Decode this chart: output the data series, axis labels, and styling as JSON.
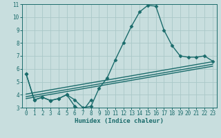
{
  "title": "",
  "xlabel": "Humidex (Indice chaleur)",
  "bg_color": "#c8dede",
  "line_color": "#1a6b6b",
  "grid_color": "#aac8c8",
  "xlim": [
    -0.5,
    23.5
  ],
  "ylim": [
    3,
    11
  ],
  "xticks": [
    0,
    1,
    2,
    3,
    4,
    5,
    6,
    7,
    8,
    9,
    10,
    11,
    12,
    13,
    14,
    15,
    16,
    17,
    18,
    19,
    20,
    21,
    22,
    23
  ],
  "yticks": [
    3,
    4,
    5,
    6,
    7,
    8,
    9,
    10,
    11
  ],
  "series_with_markers": [
    {
      "x": [
        0,
        1,
        2,
        3,
        4,
        5,
        6,
        7,
        8
      ],
      "y": [
        5.6,
        3.6,
        3.8,
        3.55,
        3.7,
        4.0,
        3.1,
        2.75,
        3.6
      ]
    },
    {
      "x": [
        0,
        1,
        2,
        3,
        4,
        5,
        6,
        7,
        8,
        9,
        10,
        11,
        12,
        13,
        14,
        15,
        16,
        17,
        18,
        19,
        20,
        21,
        22,
        23
      ],
      "y": [
        5.6,
        3.6,
        3.8,
        3.55,
        3.7,
        4.0,
        3.6,
        3.0,
        3.1,
        4.5,
        5.3,
        6.7,
        8.0,
        9.3,
        10.4,
        10.9,
        10.85,
        9.0,
        7.8,
        7.0,
        6.9,
        6.9,
        7.0,
        6.6
      ]
    }
  ],
  "linear_series": [
    {
      "x": [
        0,
        23
      ],
      "y": [
        4.05,
        6.55
      ]
    },
    {
      "x": [
        0,
        23
      ],
      "y": [
        3.85,
        6.35
      ]
    },
    {
      "x": [
        0,
        23
      ],
      "y": [
        3.7,
        6.2
      ]
    }
  ],
  "linewidth": 1.0,
  "markersize": 2.5
}
